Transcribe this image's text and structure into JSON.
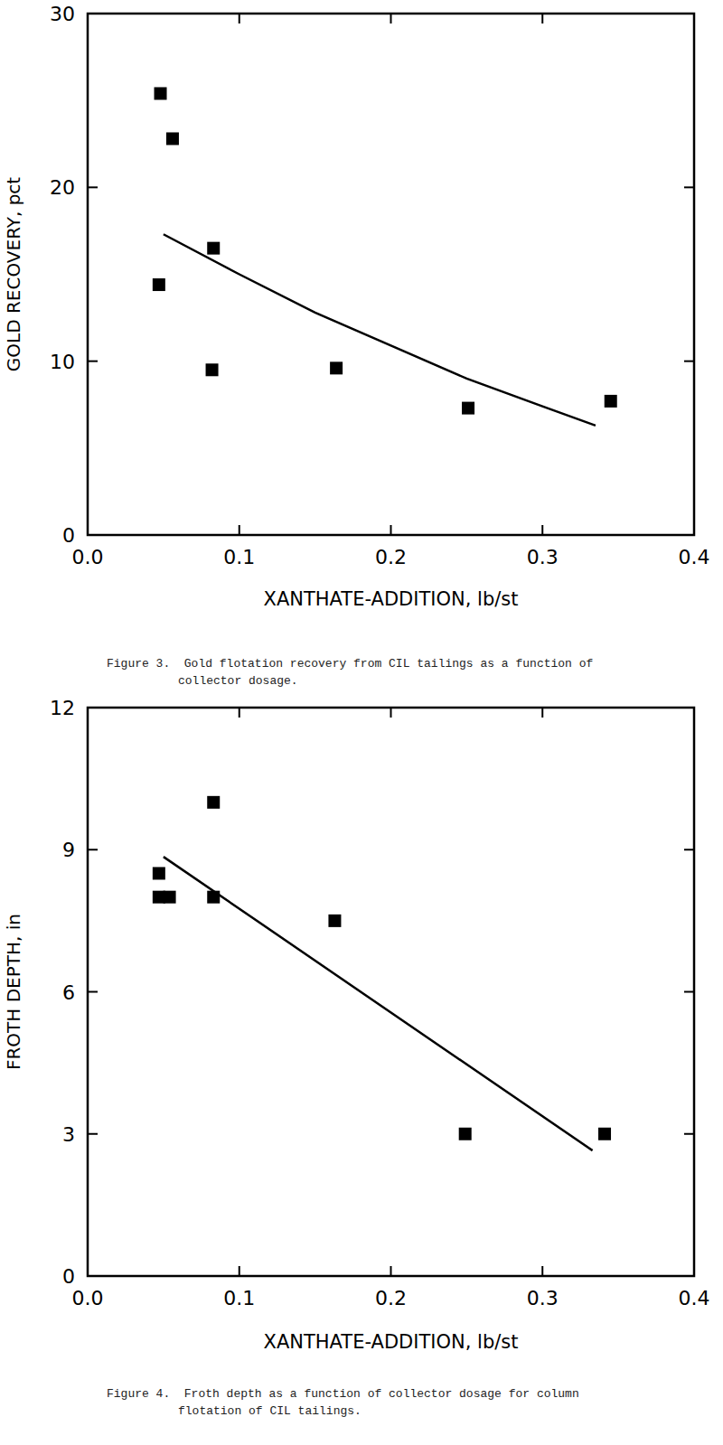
{
  "chart_data": [
    {
      "type": "scatter",
      "title": [
        "Figure 3.  Gold flotation recovery from CIL tailings as a function of",
        "collector dosage."
      ],
      "x_label": "XANTHATE-ADDITION, lb/st",
      "y_label": "GOLD RECOVERY, pct",
      "xlim": [
        0,
        0.4
      ],
      "ylim": [
        0,
        30
      ],
      "xticks": [
        {
          "value": 0,
          "label": "0.0"
        },
        {
          "value": 0.1,
          "label": "0.1"
        },
        {
          "value": 0.2,
          "label": "0.2"
        },
        {
          "value": 0.3,
          "label": "0.3"
        },
        {
          "value": 0.4,
          "label": "0.4"
        }
      ],
      "yticks": [
        0,
        10,
        20,
        30
      ],
      "grid": false,
      "series": [
        {
          "type": "scatter",
          "marker": "square",
          "color": "#000000",
          "x": [
            0.048,
            0.056,
            0.047,
            0.083,
            0.082,
            0.164,
            0.251,
            0.345
          ],
          "values": [
            25.4,
            22.8,
            14.4,
            16.5,
            9.5,
            9.6,
            7.3,
            7.7
          ]
        },
        {
          "type": "line",
          "line_style": "solid",
          "color": "#000000",
          "x": [
            0.05,
            0.1,
            0.15,
            0.2,
            0.25,
            0.3,
            0.335
          ],
          "values": [
            17.3,
            15.0,
            12.8,
            10.9,
            9.0,
            7.4,
            6.3
          ]
        }
      ]
    },
    {
      "type": "scatter",
      "title": [
        "Figure 4.  Froth depth as a function of collector dosage for column",
        "flotation of CIL tailings."
      ],
      "x_label": "XANTHATE-ADDITION, lb/st",
      "y_label": "FROTH DEPTH, in",
      "xlim": [
        0,
        0.4
      ],
      "ylim": [
        0,
        12
      ],
      "xticks": [
        {
          "value": 0,
          "label": "0.0"
        },
        {
          "value": 0.1,
          "label": "0.1"
        },
        {
          "value": 0.2,
          "label": "0.2"
        },
        {
          "value": 0.3,
          "label": "0.3"
        },
        {
          "value": 0.4,
          "label": "0.4"
        }
      ],
      "yticks": [
        0,
        3,
        6,
        9,
        12
      ],
      "grid": false,
      "series": [
        {
          "type": "scatter",
          "marker": "square",
          "color": "#000000",
          "x": [
            0.047,
            0.047,
            0.054,
            0.083,
            0.083,
            0.163,
            0.249,
            0.341
          ],
          "values": [
            8.5,
            8.0,
            8.0,
            10.0,
            8.0,
            7.5,
            3.0,
            3.0
          ]
        },
        {
          "type": "line",
          "line_style": "solid",
          "color": "#000000",
          "x": [
            0.05,
            0.333
          ],
          "values": [
            8.85,
            2.65
          ]
        }
      ]
    }
  ]
}
